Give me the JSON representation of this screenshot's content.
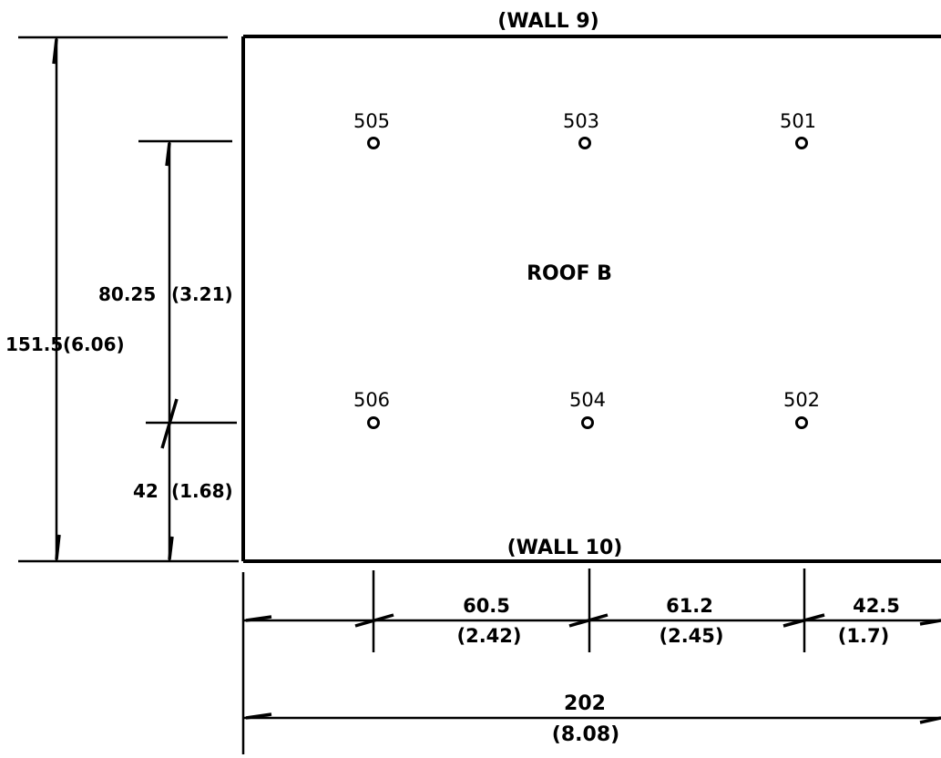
{
  "walls": {
    "top": "(WALL 9)",
    "bottom": "(WALL 10)"
  },
  "roof_label": "ROOF B",
  "points": [
    {
      "id": "505"
    },
    {
      "id": "503"
    },
    {
      "id": "501"
    },
    {
      "id": "506"
    },
    {
      "id": "504"
    },
    {
      "id": "502"
    }
  ],
  "dimensions": {
    "overall_height": {
      "value": "151.5",
      "metric": "(6.06)"
    },
    "upper_height": {
      "value": "80.25",
      "metric": "(3.21)"
    },
    "lower_height": {
      "value": "42",
      "metric": "(1.68)"
    },
    "span_1": {
      "value": "60.5",
      "metric": "(2.42)"
    },
    "span_2": {
      "value": "61.2",
      "metric": "(2.45)"
    },
    "span_3": {
      "value": "42.5",
      "metric": "(1.7)"
    },
    "overall_width": {
      "value": "202",
      "metric": "(8.08)"
    }
  },
  "colors": {
    "ink": "#000000",
    "paper": "#ffffff"
  }
}
